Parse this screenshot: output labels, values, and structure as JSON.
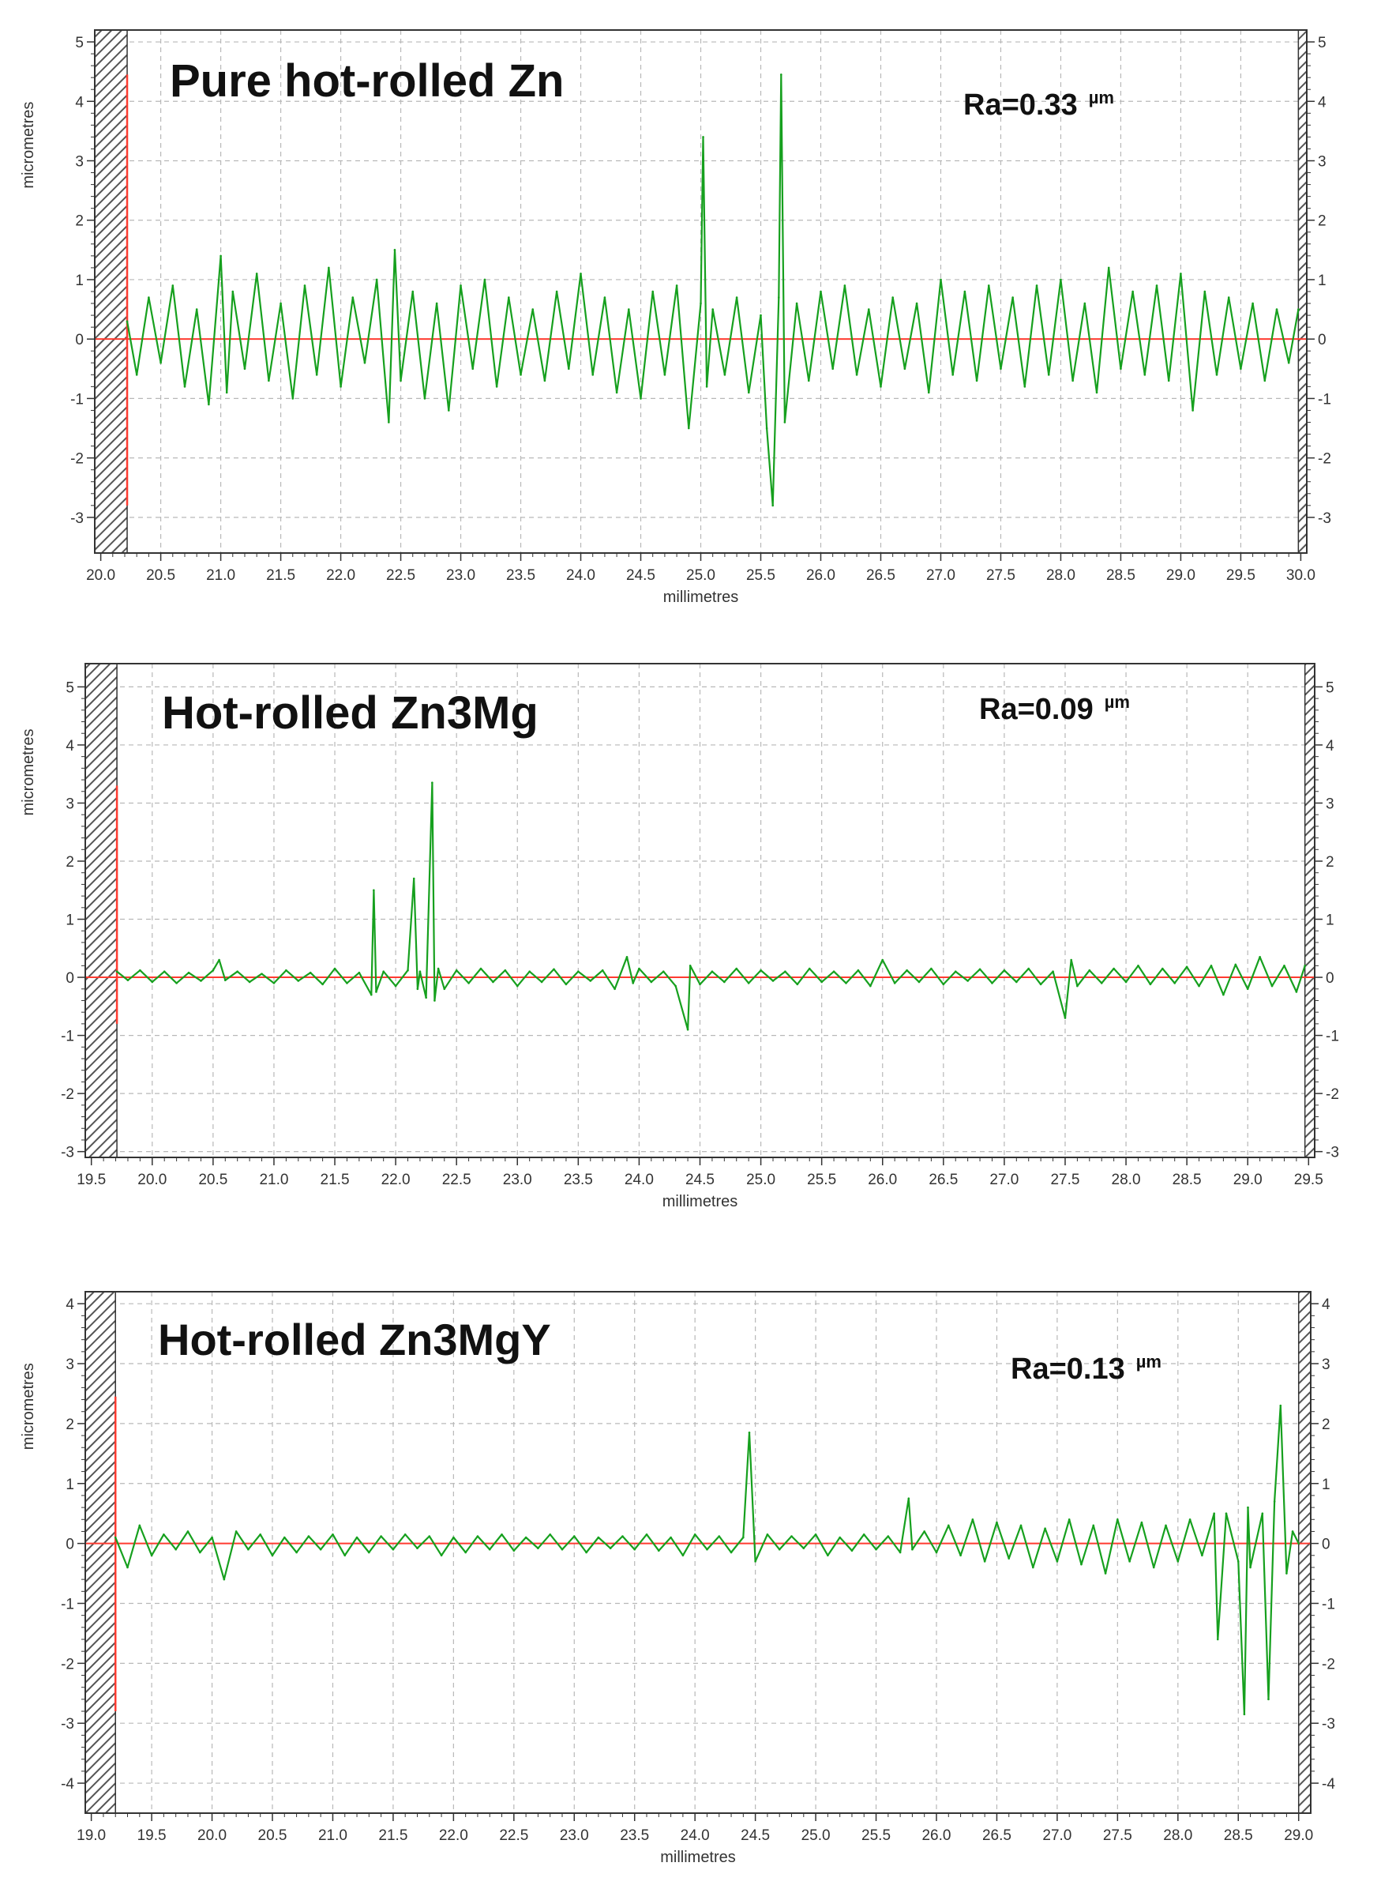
{
  "colors": {
    "profile": "#16a01e",
    "zero_line": "#ff3b30",
    "grid": "#b8b8b8",
    "frame": "#333333",
    "hatch": "#555555"
  },
  "chart_data": [
    {
      "type": "line",
      "title": "Pure hot-rolled Zn",
      "annotation": {
        "ra_text": "Ra=0.33",
        "unit": "µm"
      },
      "xlabel": "millimetres",
      "ylabel": "micrometres",
      "xlim": [
        19.95,
        30.05
      ],
      "ylim": [
        -3.6,
        5.2
      ],
      "x_ticks": [
        "20.0",
        "20.5",
        "21.0",
        "21.5",
        "22.0",
        "22.5",
        "23.0",
        "23.5",
        "24.0",
        "24.5",
        "25.0",
        "25.5",
        "26.0",
        "26.5",
        "27.0",
        "27.5",
        "28.0",
        "28.5",
        "29.0",
        "29.5",
        "30.0"
      ],
      "y_ticks_left": [
        "5",
        "4",
        "3",
        "2",
        "1",
        "0",
        "-1",
        "-2",
        "-3"
      ],
      "y_ticks_right": [
        "5",
        "4",
        "3",
        "2",
        "1",
        "0",
        "-1",
        "-2",
        "-3"
      ],
      "excluded_regions": [
        [
          19.95,
          20.22
        ],
        [
          29.98,
          30.05
        ]
      ],
      "marker": {
        "x": 20.22,
        "y_range": [
          -2.8,
          4.45
        ]
      },
      "grid": true,
      "legend": "none",
      "series": [
        {
          "x": [
            20.22,
            20.3,
            20.4,
            20.5,
            20.6,
            20.7,
            20.8,
            20.9,
            21.0,
            21.05,
            21.1,
            21.2,
            21.3,
            21.4,
            21.5,
            21.6,
            21.7,
            21.8,
            21.9,
            22.0,
            22.1,
            22.2,
            22.3,
            22.4,
            22.45,
            22.5,
            22.6,
            22.7,
            22.8,
            22.9,
            23.0,
            23.1,
            23.2,
            23.3,
            23.4,
            23.5,
            23.6,
            23.7,
            23.8,
            23.9,
            24.0,
            24.1,
            24.2,
            24.3,
            24.4,
            24.5,
            24.6,
            24.7,
            24.8,
            24.9,
            25.0,
            25.02,
            25.05,
            25.1,
            25.2,
            25.3,
            25.4,
            25.5,
            25.55,
            25.6,
            25.65,
            25.67,
            25.7,
            25.8,
            25.9,
            26.0,
            26.1,
            26.2,
            26.3,
            26.4,
            26.5,
            26.6,
            26.7,
            26.8,
            26.9,
            27.0,
            27.1,
            27.2,
            27.3,
            27.4,
            27.5,
            27.6,
            27.7,
            27.8,
            27.9,
            28.0,
            28.1,
            28.2,
            28.3,
            28.4,
            28.5,
            28.6,
            28.7,
            28.8,
            28.9,
            29.0,
            29.1,
            29.2,
            29.3,
            29.4,
            29.5,
            29.6,
            29.7,
            29.8,
            29.9,
            29.98
          ],
          "y": [
            0.3,
            -0.6,
            0.7,
            -0.4,
            0.9,
            -0.8,
            0.5,
            -1.1,
            1.4,
            -0.9,
            0.8,
            -0.5,
            1.1,
            -0.7,
            0.6,
            -1.0,
            0.9,
            -0.6,
            1.2,
            -0.8,
            0.7,
            -0.4,
            1.0,
            -1.4,
            1.5,
            -0.7,
            0.8,
            -1.0,
            0.6,
            -1.2,
            0.9,
            -0.5,
            1.0,
            -0.8,
            0.7,
            -0.6,
            0.5,
            -0.7,
            0.8,
            -0.5,
            1.1,
            -0.6,
            0.7,
            -0.9,
            0.5,
            -1.0,
            0.8,
            -0.6,
            0.9,
            -1.5,
            0.6,
            3.4,
            -0.8,
            0.5,
            -0.6,
            0.7,
            -0.9,
            0.4,
            -1.5,
            -2.8,
            0.7,
            4.45,
            -1.4,
            0.6,
            -0.7,
            0.8,
            -0.5,
            0.9,
            -0.6,
            0.5,
            -0.8,
            0.7,
            -0.5,
            0.6,
            -0.9,
            1.0,
            -0.6,
            0.8,
            -0.7,
            0.9,
            -0.5,
            0.7,
            -0.8,
            0.9,
            -0.6,
            1.0,
            -0.7,
            0.6,
            -0.9,
            1.2,
            -0.5,
            0.8,
            -0.6,
            0.9,
            -0.7,
            1.1,
            -1.2,
            0.8,
            -0.6,
            0.7,
            -0.5,
            0.6,
            -0.7,
            0.5,
            -0.4,
            0.5
          ]
        }
      ]
    },
    {
      "type": "line",
      "title": "Hot-rolled Zn3Mg",
      "annotation": {
        "ra_text": "Ra=0.09",
        "unit": "µm"
      },
      "xlabel": "millimetres",
      "ylabel": "micrometres",
      "xlim": [
        19.45,
        29.55
      ],
      "ylim": [
        -3.1,
        5.4
      ],
      "x_ticks": [
        "19.5",
        "20.0",
        "20.5",
        "21.0",
        "21.5",
        "22.0",
        "22.5",
        "23.0",
        "23.5",
        "24.0",
        "24.5",
        "25.0",
        "25.5",
        "26.0",
        "26.5",
        "27.0",
        "27.5",
        "28.0",
        "28.5",
        "29.0",
        "29.5"
      ],
      "y_ticks_left": [
        "5",
        "4",
        "3",
        "2",
        "1",
        "0",
        "-1",
        "-2",
        "-3"
      ],
      "y_ticks_right": [
        "5",
        "4",
        "3",
        "2",
        "1",
        "0",
        "-1",
        "-2",
        "-3"
      ],
      "excluded_regions": [
        [
          19.45,
          19.71
        ],
        [
          29.47,
          29.55
        ]
      ],
      "marker": {
        "x": 19.71,
        "y_range": [
          -0.8,
          3.3
        ]
      },
      "grid": true,
      "legend": "none",
      "series": [
        {
          "x": [
            19.71,
            19.8,
            19.9,
            20.0,
            20.1,
            20.2,
            20.3,
            20.4,
            20.5,
            20.55,
            20.6,
            20.7,
            20.8,
            20.9,
            21.0,
            21.1,
            21.2,
            21.3,
            21.4,
            21.5,
            21.6,
            21.7,
            21.8,
            21.82,
            21.84,
            21.9,
            22.0,
            22.1,
            22.15,
            22.18,
            22.2,
            22.25,
            22.3,
            22.32,
            22.35,
            22.4,
            22.5,
            22.6,
            22.7,
            22.8,
            22.9,
            23.0,
            23.1,
            23.2,
            23.3,
            23.4,
            23.5,
            23.6,
            23.7,
            23.8,
            23.9,
            23.95,
            24.0,
            24.1,
            24.2,
            24.3,
            24.4,
            24.42,
            24.5,
            24.6,
            24.7,
            24.8,
            24.9,
            25.0,
            25.1,
            25.2,
            25.3,
            25.4,
            25.5,
            25.6,
            25.7,
            25.8,
            25.9,
            26.0,
            26.1,
            26.2,
            26.3,
            26.4,
            26.5,
            26.6,
            26.7,
            26.8,
            26.9,
            27.0,
            27.1,
            27.2,
            27.3,
            27.4,
            27.5,
            27.55,
            27.6,
            27.7,
            27.8,
            27.9,
            28.0,
            28.1,
            28.2,
            28.3,
            28.4,
            28.5,
            28.6,
            28.7,
            28.8,
            28.9,
            29.0,
            29.1,
            29.2,
            29.3,
            29.4,
            29.47
          ],
          "y": [
            0.1,
            -0.05,
            0.12,
            -0.08,
            0.1,
            -0.1,
            0.08,
            -0.06,
            0.12,
            0.3,
            -0.05,
            0.1,
            -0.08,
            0.06,
            -0.1,
            0.12,
            -0.06,
            0.08,
            -0.12,
            0.15,
            -0.1,
            0.08,
            -0.3,
            1.5,
            -0.25,
            0.1,
            -0.15,
            0.12,
            1.7,
            -0.2,
            0.1,
            -0.35,
            3.35,
            -0.4,
            0.15,
            -0.2,
            0.12,
            -0.1,
            0.15,
            -0.08,
            0.12,
            -0.15,
            0.1,
            -0.08,
            0.14,
            -0.12,
            0.1,
            -0.06,
            0.12,
            -0.2,
            0.35,
            -0.1,
            0.15,
            -0.08,
            0.1,
            -0.15,
            -0.9,
            0.2,
            -0.12,
            0.1,
            -0.08,
            0.15,
            -0.1,
            0.12,
            -0.06,
            0.1,
            -0.12,
            0.15,
            -0.08,
            0.1,
            -0.1,
            0.12,
            -0.15,
            0.3,
            -0.1,
            0.12,
            -0.08,
            0.15,
            -0.12,
            0.1,
            -0.06,
            0.14,
            -0.1,
            0.12,
            -0.08,
            0.15,
            -0.12,
            0.1,
            -0.7,
            0.3,
            -0.15,
            0.12,
            -0.1,
            0.15,
            -0.08,
            0.2,
            -0.12,
            0.15,
            -0.1,
            0.18,
            -0.15,
            0.2,
            -0.3,
            0.22,
            -0.2,
            0.35,
            -0.15,
            0.2,
            -0.25,
            0.2
          ]
        }
      ]
    },
    {
      "type": "line",
      "title": "Hot-rolled Zn3MgY",
      "annotation": {
        "ra_text": "Ra=0.13",
        "unit": "µm"
      },
      "xlabel": "millimetres",
      "ylabel": "micrometres",
      "xlim": [
        18.95,
        29.1
      ],
      "ylim": [
        -4.5,
        4.2
      ],
      "x_ticks": [
        "19.0",
        "19.5",
        "20.0",
        "20.5",
        "21.0",
        "21.5",
        "22.0",
        "22.5",
        "23.0",
        "23.5",
        "24.0",
        "24.5",
        "25.0",
        "25.5",
        "26.0",
        "26.5",
        "27.0",
        "27.5",
        "28.0",
        "28.5",
        "29.0"
      ],
      "y_ticks_left": [
        "4",
        "3",
        "2",
        "1",
        "0",
        "-1",
        "-2",
        "-3",
        "-4"
      ],
      "y_ticks_right": [
        "4",
        "3",
        "2",
        "1",
        "0",
        "-1",
        "-2",
        "-3",
        "-4"
      ],
      "excluded_regions": [
        [
          18.95,
          19.2
        ],
        [
          29.0,
          29.1
        ]
      ],
      "marker": {
        "x": 19.2,
        "y_range": [
          -2.8,
          2.45
        ]
      },
      "grid": true,
      "legend": "none",
      "series": [
        {
          "x": [
            19.2,
            19.3,
            19.4,
            19.5,
            19.6,
            19.7,
            19.8,
            19.9,
            20.0,
            20.1,
            20.2,
            20.3,
            20.4,
            20.5,
            20.6,
            20.7,
            20.8,
            20.9,
            21.0,
            21.1,
            21.2,
            21.3,
            21.4,
            21.5,
            21.6,
            21.7,
            21.8,
            21.9,
            22.0,
            22.1,
            22.2,
            22.3,
            22.4,
            22.5,
            22.6,
            22.7,
            22.8,
            22.9,
            23.0,
            23.1,
            23.2,
            23.3,
            23.4,
            23.5,
            23.6,
            23.7,
            23.8,
            23.9,
            24.0,
            24.1,
            24.2,
            24.3,
            24.4,
            24.45,
            24.5,
            24.6,
            24.7,
            24.8,
            24.9,
            25.0,
            25.1,
            25.2,
            25.3,
            25.4,
            25.5,
            25.6,
            25.7,
            25.77,
            25.8,
            25.9,
            26.0,
            26.1,
            26.2,
            26.3,
            26.4,
            26.5,
            26.6,
            26.7,
            26.8,
            26.9,
            27.0,
            27.1,
            27.2,
            27.3,
            27.4,
            27.5,
            27.6,
            27.7,
            27.8,
            27.9,
            28.0,
            28.1,
            28.2,
            28.3,
            28.33,
            28.4,
            28.5,
            28.55,
            28.58,
            28.6,
            28.7,
            28.75,
            28.8,
            28.85,
            28.9,
            28.95,
            29.0
          ],
          "y": [
            0.1,
            -0.4,
            0.3,
            -0.2,
            0.15,
            -0.1,
            0.2,
            -0.15,
            0.1,
            -0.6,
            0.2,
            -0.1,
            0.15,
            -0.2,
            0.1,
            -0.15,
            0.12,
            -0.1,
            0.15,
            -0.2,
            0.1,
            -0.15,
            0.12,
            -0.1,
            0.15,
            -0.08,
            0.12,
            -0.2,
            0.1,
            -0.15,
            0.12,
            -0.1,
            0.15,
            -0.12,
            0.1,
            -0.08,
            0.15,
            -0.1,
            0.12,
            -0.15,
            0.1,
            -0.08,
            0.12,
            -0.1,
            0.15,
            -0.12,
            0.1,
            -0.2,
            0.15,
            -0.1,
            0.12,
            -0.15,
            0.1,
            1.85,
            -0.3,
            0.15,
            -0.1,
            0.12,
            -0.08,
            0.15,
            -0.2,
            0.1,
            -0.12,
            0.15,
            -0.1,
            0.12,
            -0.15,
            0.75,
            -0.1,
            0.2,
            -0.15,
            0.3,
            -0.2,
            0.4,
            -0.3,
            0.35,
            -0.25,
            0.3,
            -0.4,
            0.25,
            -0.3,
            0.4,
            -0.35,
            0.3,
            -0.5,
            0.4,
            -0.3,
            0.35,
            -0.4,
            0.3,
            -0.3,
            0.4,
            -0.2,
            0.5,
            -1.6,
            0.5,
            -0.3,
            -2.85,
            0.6,
            -0.4,
            0.5,
            -2.6,
            0.7,
            2.3,
            -0.5,
            0.2,
            0.0
          ]
        }
      ]
    }
  ]
}
